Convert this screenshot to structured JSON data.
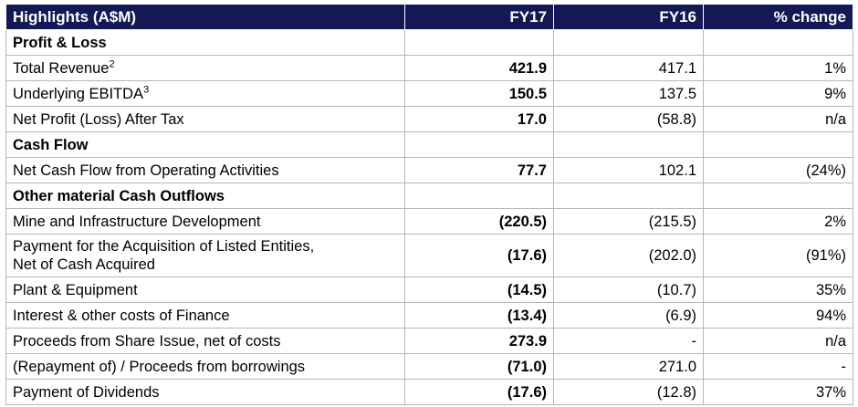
{
  "table": {
    "headers": [
      "Highlights (A$M)",
      "FY17",
      "FY16",
      "% change"
    ],
    "rows": [
      {
        "type": "section",
        "label": "Profit & Loss",
        "fy17": "",
        "fy16": "",
        "change": ""
      },
      {
        "type": "data",
        "label": "Total Revenue",
        "sup": "2",
        "fy17": "421.9",
        "fy16": "417.1",
        "change": "1%"
      },
      {
        "type": "data",
        "label": "Underlying EBITDA",
        "sup": "3",
        "fy17": "150.5",
        "fy16": "137.5",
        "change": "9%"
      },
      {
        "type": "data",
        "label": "Net Profit (Loss) After Tax",
        "fy17": "17.0",
        "fy16": "(58.8)",
        "change": "n/a"
      },
      {
        "type": "section",
        "label": "Cash Flow",
        "fy17": "",
        "fy16": "",
        "change": ""
      },
      {
        "type": "data",
        "label": "Net Cash Flow from Operating Activities",
        "fy17": "77.7",
        "fy16": "102.1",
        "change": "(24%)"
      },
      {
        "type": "section",
        "label": "Other material Cash Outflows",
        "fy17": "",
        "fy16": "",
        "change": ""
      },
      {
        "type": "data",
        "label": "Mine and Infrastructure Development",
        "fy17": "(220.5)",
        "fy16": "(215.5)",
        "change": "2%"
      },
      {
        "type": "data",
        "tall": true,
        "label": "Payment for the Acquisition of Listed Entities,",
        "label2": "Net of Cash Acquired",
        "fy17": "(17.6)",
        "fy16": "(202.0)",
        "change": "(91%)"
      },
      {
        "type": "data",
        "label": "Plant & Equipment",
        "fy17": "(14.5)",
        "fy16": "(10.7)",
        "change": "35%"
      },
      {
        "type": "data",
        "label": "Interest & other costs of Finance",
        "fy17": "(13.4)",
        "fy16": "(6.9)",
        "change": "94%"
      },
      {
        "type": "data",
        "label": "Proceeds from Share Issue, net of costs",
        "fy17": "273.9",
        "fy16": "-",
        "change": "n/a"
      },
      {
        "type": "data",
        "label": "(Repayment of) / Proceeds from borrowings",
        "fy17": "(71.0)",
        "fy16": "271.0",
        "change": "-"
      },
      {
        "type": "data",
        "label": "Payment of Dividends",
        "fy17": "(17.6)",
        "fy16": "(12.8)",
        "change": "37%"
      }
    ]
  }
}
